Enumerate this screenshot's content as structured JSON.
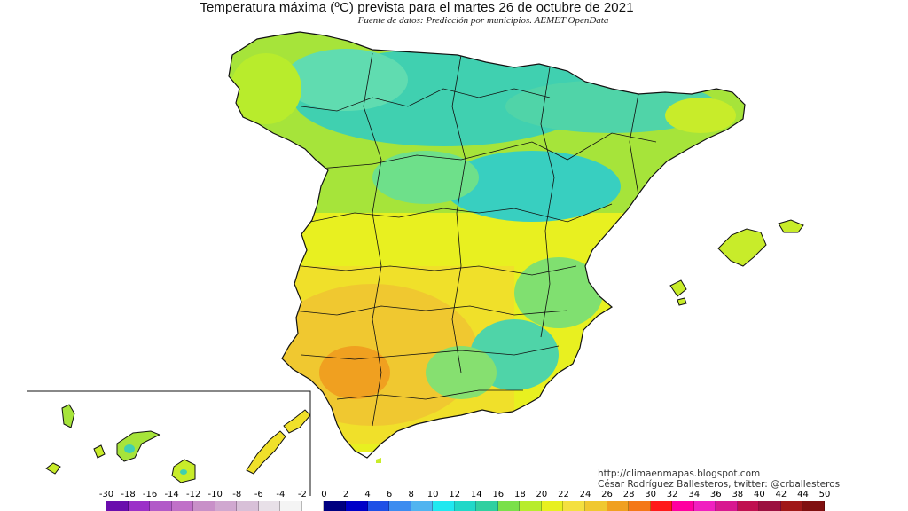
{
  "header": {
    "title": "Temperatura máxima (ºC) prevista para el martes 26 de octubre de 2021",
    "subtitle": "Fuente de datos: Predicción por municipios. AEMET OpenData"
  },
  "credits": {
    "url": "http://climaenmapas.blogspot.com",
    "author": "César Rodríguez Ballesteros, twitter: @crballesteros"
  },
  "legend": {
    "labels": [
      "-30",
      "-18",
      "-16",
      "-14",
      "-12",
      "-10",
      "-8",
      "-6",
      "-4",
      "-2",
      "0",
      "2",
      "4",
      "6",
      "8",
      "10",
      "12",
      "14",
      "16",
      "18",
      "20",
      "22",
      "24",
      "26",
      "28",
      "30",
      "32",
      "34",
      "36",
      "38",
      "40",
      "42",
      "44",
      "50"
    ],
    "colors": [
      "#6a0dad",
      "#9b30c8",
      "#b25ac8",
      "#c070c8",
      "#c890c8",
      "#d0a8d0",
      "#d8c0d8",
      "#e8e0e8",
      "#f4f4f4",
      "#ffffff",
      "#000080",
      "#0000c8",
      "#1e50e6",
      "#3c8cf0",
      "#50b4f0",
      "#20e8f0",
      "#20d8c8",
      "#30d0a0",
      "#7ae04a",
      "#b8ec2c",
      "#e8f020",
      "#f4e040",
      "#f0c830",
      "#f0a020",
      "#f47818",
      "#ff1a1a",
      "#ff00a0",
      "#f020c0",
      "#d81890",
      "#c01050",
      "#9c1040",
      "#a01818",
      "#801010"
    ]
  },
  "map": {
    "regions": [
      {
        "name": "Peninsula",
        "color": "#a6e43a"
      },
      {
        "name": "Baleares",
        "color": "#c8ec2a"
      },
      {
        "name": "Canarias",
        "color": "#c8ec2a"
      }
    ]
  }
}
